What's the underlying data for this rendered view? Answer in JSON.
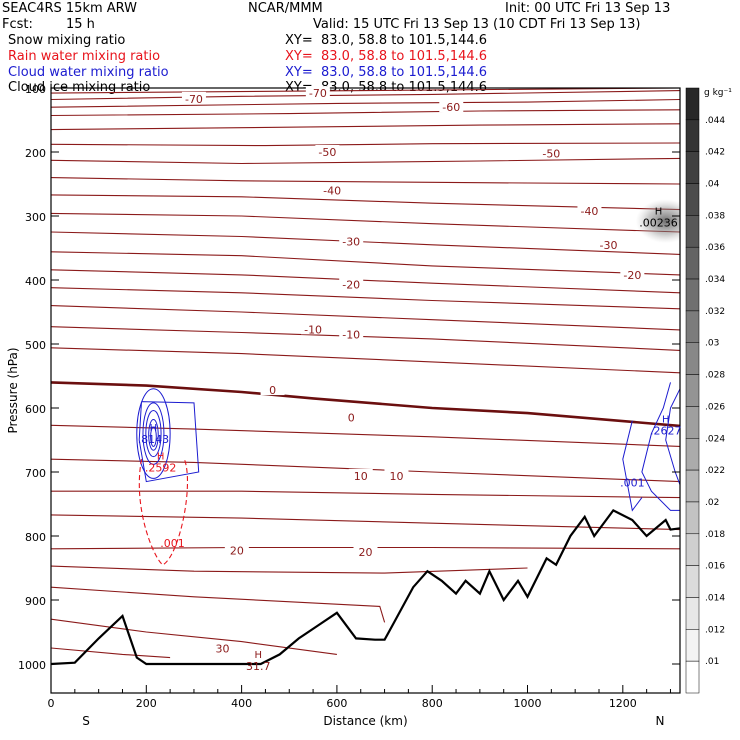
{
  "header": {
    "model": "SEAC4RS 15km ARW",
    "center": "NCAR/MMM",
    "init": "Init: 00 UTC Fri 13 Sep 13",
    "fcst_label": "Fcst:",
    "fcst_value": "15 h",
    "valid": "Valid: 15 UTC Fri 13 Sep 13 (10 CDT Fri 13 Sep 13)"
  },
  "fields": [
    {
      "name": "Snow mixing ratio",
      "xy": "XY=  83.0, 58.8 to 101.5,144.6",
      "color": "#000000"
    },
    {
      "name": "Rain water mixing ratio",
      "xy": "XY=  83.0, 58.8 to 101.5,144.6",
      "color": "#e8141c"
    },
    {
      "name": "Cloud water mixing ratio",
      "xy": "XY=  83.0, 58.8 to 101.5,144.6",
      "color": "#1c1cd0"
    },
    {
      "name": "Cloud ice mixing ratio",
      "xy": "XY=  83.0, 58.8 to 101.5,144.6",
      "color": "#000000"
    }
  ],
  "colorbar": {
    "unit": "g kg⁻¹",
    "ticks": [
      ".044",
      ".042",
      ".04",
      ".038",
      ".036",
      ".034",
      ".032",
      ".03",
      ".028",
      ".026",
      ".024",
      ".022",
      ".02",
      ".018",
      ".016",
      ".014",
      ".012",
      ".01"
    ]
  },
  "chart_data": {
    "type": "cross-section",
    "xlabel": "Distance (km)",
    "ylabel": "Pressure (hPa)",
    "xlim": [
      0,
      1320
    ],
    "ylim": [
      1050,
      100
    ],
    "x_ticks": [
      "0",
      "200",
      "400",
      "600",
      "800",
      "1000",
      "1200"
    ],
    "y_ticks": [
      "100",
      "200",
      "300",
      "400",
      "500",
      "600",
      "700",
      "800",
      "900",
      "1000"
    ],
    "end_labels": {
      "left": "S",
      "right": "N"
    },
    "temperature_labels": [
      {
        "text": "-70",
        "x": 300,
        "p": 117
      },
      {
        "text": "-70",
        "x": 560,
        "p": 108
      },
      {
        "text": "-60",
        "x": 840,
        "p": 130
      },
      {
        "text": "-50",
        "x": 580,
        "p": 200
      },
      {
        "text": "-50",
        "x": 1050,
        "p": 202
      },
      {
        "text": "-40",
        "x": 590,
        "p": 260
      },
      {
        "text": "-40",
        "x": 1130,
        "p": 292
      },
      {
        "text": "-30",
        "x": 630,
        "p": 340
      },
      {
        "text": "-30",
        "x": 1170,
        "p": 345
      },
      {
        "text": "-20",
        "x": 630,
        "p": 407
      },
      {
        "text": "-20",
        "x": 1220,
        "p": 392
      },
      {
        "text": "-10",
        "x": 550,
        "p": 477
      },
      {
        "text": "-10",
        "x": 630,
        "p": 485
      },
      {
        "text": "0",
        "x": 465,
        "p": 572
      },
      {
        "text": "0",
        "x": 630,
        "p": 615
      },
      {
        "text": "10",
        "x": 650,
        "p": 706
      },
      {
        "text": "10",
        "x": 725,
        "p": 706
      },
      {
        "text": "20",
        "x": 390,
        "p": 823
      },
      {
        "text": "20",
        "x": 660,
        "p": 825
      },
      {
        "text": "30",
        "x": 360,
        "p": 976
      }
    ],
    "extrema": [
      {
        "text": "H",
        "value": ".8143",
        "x": 215,
        "p": 645,
        "color": "#1c1cd0"
      },
      {
        "text": "H",
        "value": ".2592",
        "x": 230,
        "p": 690,
        "color": "#e8141c"
      },
      {
        "text": "",
        "value": ".001",
        "x": 255,
        "p": 808,
        "color": "#e8141c"
      },
      {
        "text": "H",
        "value": ".2627",
        "x": 1290,
        "p": 632,
        "color": "#1c1cd0"
      },
      {
        "text": "",
        "value": ".001",
        "x": 1220,
        "p": 713,
        "color": "#1c1cd0"
      },
      {
        "text": "H",
        "value": ".00236",
        "x": 1275,
        "p": 307,
        "color": "#000000"
      },
      {
        "text": "H",
        "value": "31.7",
        "x": 435,
        "p": 1000,
        "color": "#8b1a1a"
      }
    ]
  }
}
